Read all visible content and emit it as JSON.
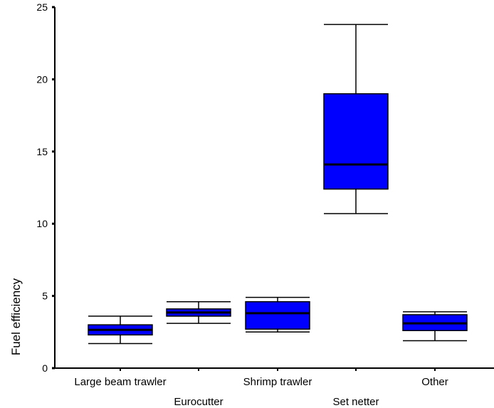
{
  "chart_data": {
    "type": "box",
    "ylabel": "Fuel efficiency",
    "xlabel": "",
    "ylim": [
      0,
      25
    ],
    "y_ticks": [
      "0",
      "5",
      "10",
      "15",
      "20",
      "25"
    ],
    "categories": [
      "Large beam trawler",
      "Eurocutter",
      "Shrimp trawler",
      "Set netter",
      "Other"
    ],
    "boxes": [
      {
        "category": "Large beam trawler",
        "min": 1.7,
        "q1": 2.3,
        "median": 2.65,
        "q3": 3.0,
        "max": 3.6
      },
      {
        "category": "Eurocutter",
        "min": 3.1,
        "q1": 3.6,
        "median": 3.85,
        "q3": 4.1,
        "max": 4.6
      },
      {
        "category": "Shrimp trawler",
        "min": 2.5,
        "q1": 2.7,
        "median": 3.8,
        "q3": 4.6,
        "max": 4.9
      },
      {
        "category": "Set netter",
        "min": 10.7,
        "q1": 12.4,
        "median": 14.1,
        "q3": 19.0,
        "max": 23.8
      },
      {
        "category": "Other",
        "min": 1.9,
        "q1": 2.6,
        "median": 3.1,
        "q3": 3.7,
        "max": 3.9
      }
    ],
    "box_color": "#0000ff",
    "grid": false,
    "legend": "none"
  }
}
